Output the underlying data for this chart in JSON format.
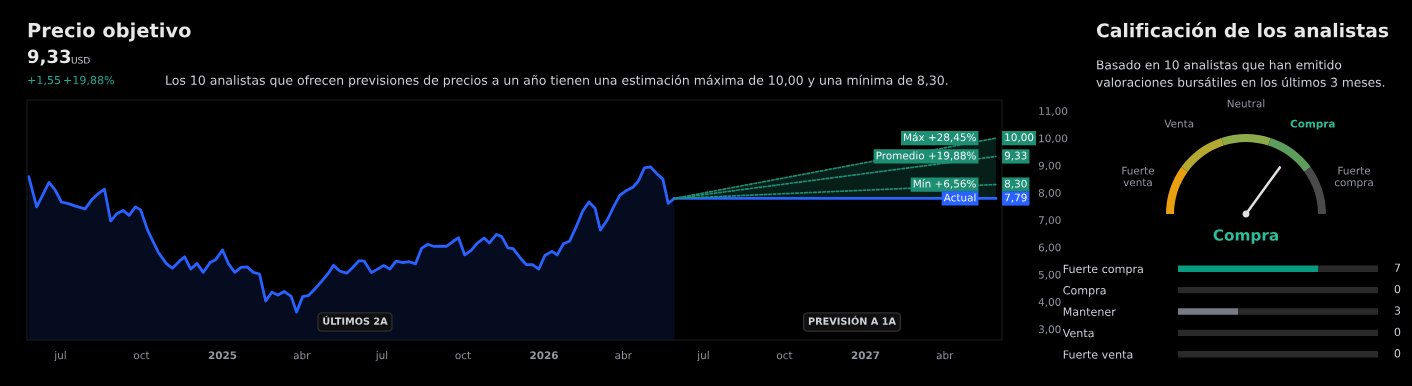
{
  "chart_data": [
    {
      "type": "line",
      "title": "Precio objetivo",
      "subtitle": "Los 10 analistas que ofrecen previsiones de precios a un año tienen una estimación máxima de 10,00 y una mínima de 8,30.",
      "annotations": [
        "9,33",
        "USD",
        "+1,55",
        "+19,88%",
        "ÚLTIMOS 2A",
        "PREVISIÓN A 1A"
      ],
      "xlim": [
        "2024-05-24",
        "2027-06-05"
      ],
      "xticks": [
        {
          "value": "2024-07-01",
          "label": "jul"
        },
        {
          "value": "2024-10-01",
          "label": "oct"
        },
        {
          "value": "2025-01-01",
          "label": "2025"
        },
        {
          "value": "2025-04-01",
          "label": "abr"
        },
        {
          "value": "2025-07-01",
          "label": "jul"
        },
        {
          "value": "2025-10-01",
          "label": "oct"
        },
        {
          "value": "2026-01-01",
          "label": "2026"
        },
        {
          "value": "2026-04-01",
          "label": "abr"
        },
        {
          "value": "2026-07-01",
          "label": "jul"
        },
        {
          "value": "2026-10-01",
          "label": "oct"
        },
        {
          "value": "2027-01-01",
          "label": "2027"
        },
        {
          "value": "2027-04-01",
          "label": "abr"
        }
      ],
      "ylim": [
        2.6,
        11.4
      ],
      "yticks": [
        {
          "value": 3,
          "label": "3,00"
        },
        {
          "value": 4,
          "label": "4,00"
        },
        {
          "value": 5,
          "label": "5,00"
        },
        {
          "value": 6,
          "label": "6,00"
        },
        {
          "value": 7,
          "label": "7,00"
        },
        {
          "value": 8,
          "label": "8,00"
        },
        {
          "value": 9,
          "label": "9,00"
        },
        {
          "value": 10,
          "label": "10,00"
        },
        {
          "value": 11,
          "label": "11,00"
        }
      ],
      "series": [
        {
          "type": "area",
          "color": "#2962ff",
          "x": [
            "2024-05-26",
            "2024-06-04",
            "2024-06-18",
            "2024-06-25",
            "2024-07-02",
            "2024-07-11",
            "2024-07-18",
            "2024-07-29",
            "2024-08-05",
            "2024-08-13",
            "2024-08-20",
            "2024-08-27",
            "2024-09-03",
            "2024-09-10",
            "2024-09-17",
            "2024-09-24",
            "2024-09-30",
            "2024-10-08",
            "2024-10-20",
            "2024-10-29",
            "2024-11-05",
            "2024-11-13",
            "2024-11-19",
            "2024-11-26",
            "2024-12-03",
            "2024-12-10",
            "2024-12-18",
            "2024-12-24",
            "2025-01-01",
            "2025-01-08",
            "2025-01-15",
            "2025-01-22",
            "2025-01-29",
            "2025-02-05",
            "2025-02-12",
            "2025-02-19",
            "2025-02-26",
            "2025-03-05",
            "2025-03-12",
            "2025-03-20",
            "2025-03-26",
            "2025-04-02",
            "2025-04-09",
            "2025-04-16",
            "2025-04-23",
            "2025-05-01",
            "2025-05-07",
            "2025-05-14",
            "2025-05-22",
            "2025-05-28",
            "2025-06-05",
            "2025-06-11",
            "2025-06-19",
            "2025-06-26",
            "2025-07-03",
            "2025-07-10",
            "2025-07-17",
            "2025-07-25",
            "2025-08-01",
            "2025-08-08",
            "2025-08-15",
            "2025-08-22",
            "2025-08-29",
            "2025-09-05",
            "2025-09-12",
            "2025-09-20",
            "2025-09-26",
            "2025-10-03",
            "2025-10-10",
            "2025-10-17",
            "2025-10-25",
            "2025-10-31",
            "2025-11-08",
            "2025-11-14",
            "2025-11-21",
            "2025-11-27",
            "2025-12-06",
            "2025-12-12",
            "2025-12-19",
            "2025-12-26",
            "2026-01-02",
            "2026-01-10",
            "2026-01-16",
            "2026-01-23",
            "2026-01-30",
            "2026-02-06",
            "2026-02-14",
            "2026-02-21",
            "2026-02-28",
            "2026-03-06",
            "2026-03-14",
            "2026-03-21",
            "2026-03-28",
            "2026-04-04",
            "2026-04-12",
            "2026-04-18",
            "2026-04-25",
            "2026-05-02",
            "2026-05-09",
            "2026-05-16",
            "2026-05-22",
            "2026-05-29"
          ],
          "values": [
            8.59,
            7.48,
            8.38,
            8.1,
            7.66,
            7.59,
            7.51,
            7.41,
            7.72,
            7.97,
            8.13,
            6.96,
            7.23,
            7.35,
            7.17,
            7.48,
            7.37,
            6.62,
            5.82,
            5.41,
            5.23,
            5.49,
            5.65,
            5.2,
            5.41,
            5.08,
            5.44,
            5.54,
            5.9,
            5.38,
            5.08,
            5.26,
            5.28,
            5.08,
            5.02,
            4.03,
            4.35,
            4.25,
            4.38,
            4.2,
            3.62,
            4.19,
            4.24,
            4.48,
            4.73,
            5.04,
            5.34,
            5.13,
            5.05,
            5.23,
            5.51,
            5.49,
            5.07,
            5.2,
            5.33,
            5.2,
            5.49,
            5.44,
            5.47,
            5.39,
            5.96,
            6.11,
            6.03,
            6.04,
            6.03,
            6.22,
            6.35,
            5.72,
            5.88,
            6.14,
            6.34,
            6.16,
            6.47,
            6.39,
            5.98,
            5.95,
            5.57,
            5.36,
            5.36,
            5.2,
            5.7,
            5.85,
            5.72,
            6.13,
            6.22,
            6.71,
            7.33,
            7.66,
            7.43,
            6.63,
            7.01,
            7.48,
            7.9,
            8.07,
            8.2,
            8.42,
            8.91,
            8.95,
            8.7,
            8.5,
            7.61,
            7.79
          ]
        },
        {
          "name": "Máx +28,45%",
          "type": "line",
          "color": "#1f8f74",
          "line_style": "dotted",
          "x": [
            "2026-05-29",
            "2027-05-29"
          ],
          "values": [
            7.79,
            10.0
          ],
          "value_labels": [
            null,
            "10,00"
          ]
        },
        {
          "name": "Promedio +19,88%",
          "type": "line",
          "color": "#1f8f74",
          "line_style": "dotted",
          "x": [
            "2026-05-29",
            "2027-05-29"
          ],
          "values": [
            7.79,
            9.33
          ],
          "value_labels": [
            null,
            "9,33"
          ],
          "lower": [
            7.79,
            7.79
          ],
          "upper": [
            7.79,
            10.0
          ]
        },
        {
          "name": "Mín +6,56%",
          "type": "line",
          "color": "#1f8f74",
          "line_style": "dotted",
          "x": [
            "2026-05-29",
            "2027-05-29"
          ],
          "values": [
            7.79,
            8.3
          ],
          "value_labels": [
            null,
            "8,30"
          ]
        },
        {
          "name": "Actual",
          "type": "line",
          "color": "#2962ff",
          "line_style": "solid",
          "x": [
            "2026-05-29",
            "2027-05-29"
          ],
          "values": [
            7.79,
            7.79
          ],
          "value_labels": [
            null,
            "7,79"
          ]
        }
      ]
    },
    {
      "type": "donut",
      "title": "Calificación de los analistas",
      "subtitle": "Basado en 10 analistas que han emitido valoraciones bursátiles en los últimos 3 meses.",
      "categories": [
        "Fuerte venta",
        "Venta",
        "Neutral",
        "Compra",
        "Fuerte compra"
      ],
      "values": [
        20,
        20,
        20,
        20,
        20
      ],
      "colors": [
        "#e8a010",
        "#b3a830",
        "#8eab4c",
        "#5d9e5c",
        "#4a4a4a"
      ],
      "needle": "Compra",
      "annotations": [
        "Compra"
      ]
    },
    {
      "type": "bar",
      "orientation": "horizontal",
      "stacked": true,
      "tick_labels": "y",
      "xlim": [
        0,
        10
      ],
      "categories": [
        "Fuerte compra",
        "Compra",
        "Mantener",
        "Venta",
        "Fuerte venta"
      ],
      "series": [
        {
          "colors": [
            "#089981",
            "#089981",
            "#787b86",
            "#089981",
            "#089981"
          ],
          "values": [
            7,
            0,
            3,
            0,
            0
          ],
          "value_labels": [
            "7",
            "0",
            "3",
            "0",
            "0"
          ]
        },
        {
          "color": "#2a2a2a",
          "values": [
            3,
            10,
            7,
            10,
            10
          ]
        }
      ]
    }
  ]
}
